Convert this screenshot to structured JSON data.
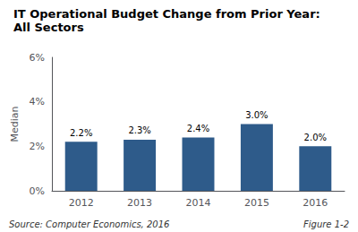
{
  "chart_data": {
    "type": "bar",
    "title": "IT Operational Budget Change from Prior Year:",
    "subtitle": "All Sectors",
    "categories": [
      "2012",
      "2013",
      "2014",
      "2015",
      "2016"
    ],
    "values": [
      2.2,
      2.3,
      2.4,
      3.0,
      2.0
    ],
    "value_labels": [
      "2.2%",
      "2.3%",
      "2.4%",
      "3.0%",
      "2.0%"
    ],
    "data_labels": true,
    "color": "#2E5B8A",
    "ylabel": "Median",
    "ylim": [
      0,
      6
    ],
    "yticks": [
      {
        "value": 0,
        "label": "0%"
      },
      {
        "value": 2,
        "label": "2%"
      },
      {
        "value": 4,
        "label": "4%"
      },
      {
        "value": 6,
        "label": "6%"
      }
    ],
    "grid": false,
    "annotations": [
      "Source: Computer Economics, 2016",
      "Figure 1-2"
    ]
  }
}
